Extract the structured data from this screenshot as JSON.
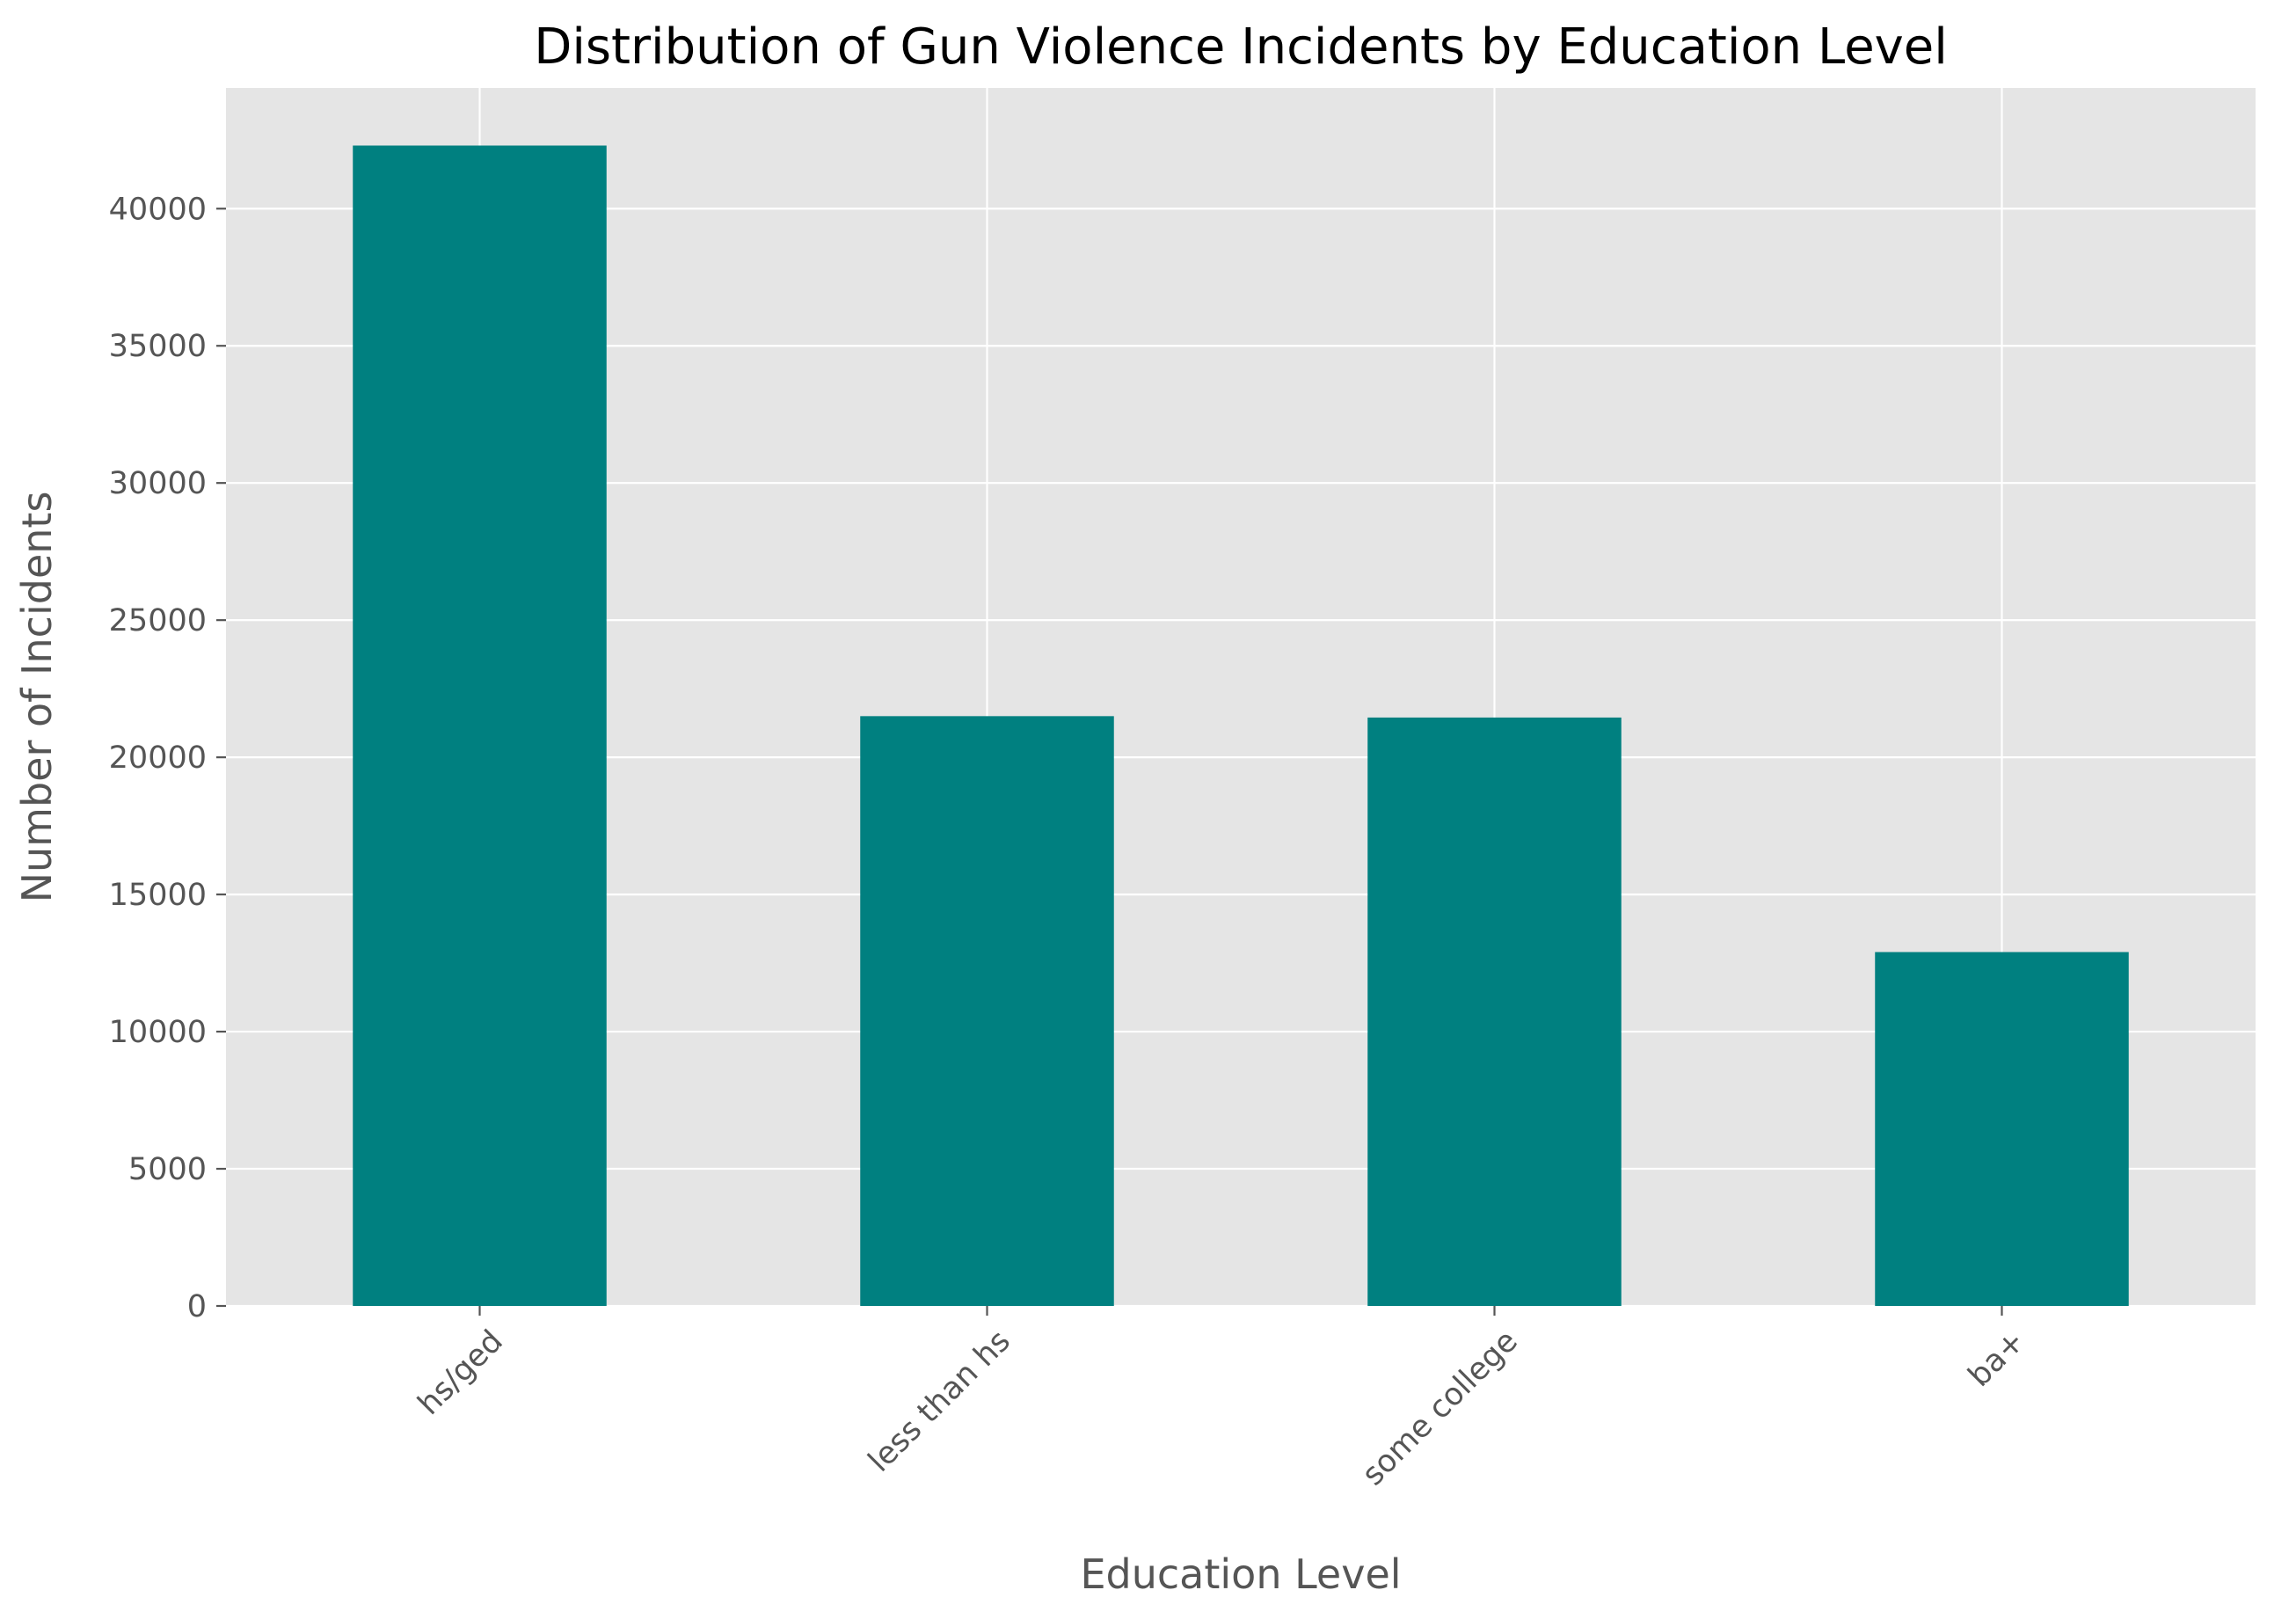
{
  "chart_data": {
    "type": "bar",
    "title": "Distribution of Gun Violence Incidents by Education Level",
    "xlabel": "Education Level",
    "ylabel": "Number of Incidents",
    "categories": [
      "hs/ged",
      "less than hs",
      "some college",
      "ba+"
    ],
    "values": [
      42300,
      21500,
      21450,
      12900
    ],
    "ylim": [
      0,
      44400
    ],
    "yticks": [
      0,
      5000,
      10000,
      15000,
      20000,
      25000,
      30000,
      35000,
      40000
    ],
    "ytick_labels": [
      "0",
      "5000",
      "10000",
      "15000",
      "20000",
      "25000",
      "30000",
      "35000",
      "40000"
    ],
    "grid": true,
    "legend": "none",
    "colors": {
      "bar": "#008080",
      "plot_background": "#e5e5e5",
      "grid": "#ffffff",
      "text": "#555555",
      "title": "#000000"
    }
  }
}
